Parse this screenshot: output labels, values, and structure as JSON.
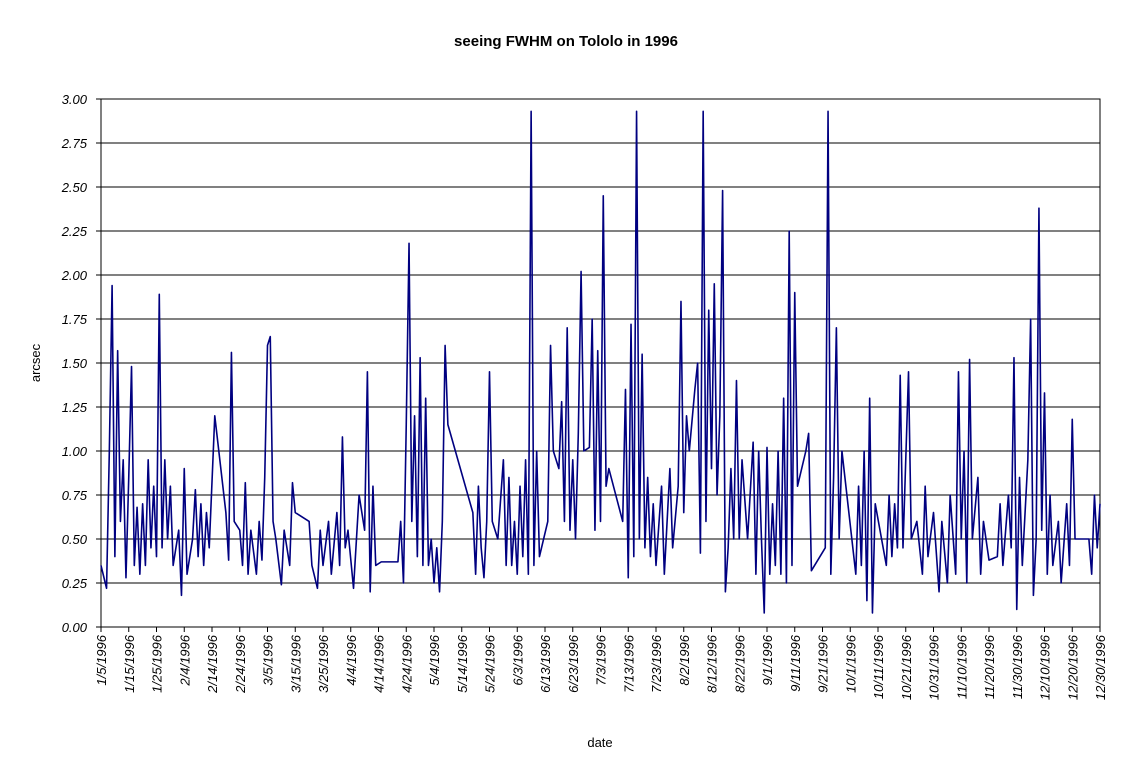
{
  "chart_data": {
    "type": "line",
    "title": "seeing FWHM on Tololo in 1996",
    "x_label": "date",
    "y_label": "arcsec",
    "color": "#000080",
    "grid": true,
    "xlim": [
      "1/5/1996",
      "12/30/1996"
    ],
    "xticks": [
      "1/5/1996",
      "1/15/1996",
      "1/25/1996",
      "2/4/1996",
      "2/14/1996",
      "2/24/1996",
      "3/5/1996",
      "3/15/1996",
      "3/25/1996",
      "4/4/1996",
      "4/14/1996",
      "4/24/1996",
      "5/4/1996",
      "5/14/1996",
      "5/24/1996",
      "6/3/1996",
      "6/13/1996",
      "6/23/1996",
      "7/3/1996",
      "7/13/1996",
      "7/23/1996",
      "8/2/1996",
      "8/12/1996",
      "8/22/1996",
      "9/1/1996",
      "9/11/1996",
      "9/21/1996",
      "10/1/1996",
      "10/11/1996",
      "10/21/1996",
      "10/31/1996",
      "11/10/1996",
      "11/20/1996",
      "11/30/1996",
      "12/10/1996",
      "12/20/1996",
      "12/30/1996"
    ],
    "ylim": [
      0,
      3
    ],
    "yticks": [
      {
        "value": 0,
        "label": "0.00"
      },
      {
        "value": 0.25,
        "label": "0.25"
      },
      {
        "value": 0.5,
        "label": "0.50"
      },
      {
        "value": 0.75,
        "label": "0.75"
      },
      {
        "value": 1,
        "label": "1.00"
      },
      {
        "value": 1.25,
        "label": "1.25"
      },
      {
        "value": 1.5,
        "label": "1.50"
      },
      {
        "value": 1.75,
        "label": "1.75"
      },
      {
        "value": 2,
        "label": "2.00"
      },
      {
        "value": 2.25,
        "label": "2.25"
      },
      {
        "value": 2.5,
        "label": "2.50"
      },
      {
        "value": 2.75,
        "label": "2.75"
      },
      {
        "value": 3,
        "label": "3.00"
      }
    ],
    "x": [
      "1/5/1996",
      "1/7/1996",
      "1/8/1996",
      "1/9/1996",
      "1/10/1996",
      "1/11/1996",
      "1/12/1996",
      "1/13/1996",
      "1/14/1996",
      "1/15/1996",
      "1/16/1996",
      "1/17/1996",
      "1/18/1996",
      "1/19/1996",
      "1/20/1996",
      "1/21/1996",
      "1/22/1996",
      "1/23/1996",
      "1/24/1996",
      "1/25/1996",
      "1/26/1996",
      "1/27/1996",
      "1/28/1996",
      "1/29/1996",
      "1/30/1996",
      "1/31/1996",
      "2/2/1996",
      "2/3/1996",
      "2/4/1996",
      "2/5/1996",
      "2/7/1996",
      "2/8/1996",
      "2/9/1996",
      "2/10/1996",
      "2/11/1996",
      "2/12/1996",
      "2/13/1996",
      "2/15/1996",
      "2/19/1996",
      "2/20/1996",
      "2/21/1996",
      "2/22/1996",
      "2/24/1996",
      "2/25/1996",
      "2/26/1996",
      "2/27/1996",
      "2/28/1996",
      "3/1/1996",
      "3/2/1996",
      "3/3/1996",
      "3/4/1996",
      "3/5/1996",
      "3/6/1996",
      "3/7/1996",
      "3/8/1996",
      "3/10/1996",
      "3/11/1996",
      "3/13/1996",
      "3/14/1996",
      "3/15/1996",
      "3/20/1996",
      "3/21/1996",
      "3/23/1996",
      "3/24/1996",
      "3/25/1996",
      "3/27/1996",
      "3/28/1996",
      "3/30/1996",
      "3/31/1996",
      "4/1/1996",
      "4/2/1996",
      "4/3/1996",
      "4/5/1996",
      "4/7/1996",
      "4/9/1996",
      "4/10/1996",
      "4/11/1996",
      "4/12/1996",
      "4/13/1996",
      "4/15/1996",
      "4/21/1996",
      "4/22/1996",
      "4/23/1996",
      "4/24/1996",
      "4/25/1996",
      "4/26/1996",
      "4/27/1996",
      "4/28/1996",
      "4/29/1996",
      "4/30/1996",
      "5/1/1996",
      "5/2/1996",
      "5/3/1996",
      "5/4/1996",
      "5/5/1996",
      "5/6/1996",
      "5/7/1996",
      "5/8/1996",
      "5/9/1996",
      "5/18/1996",
      "5/19/1996",
      "5/20/1996",
      "5/21/1996",
      "5/22/1996",
      "5/23/1996",
      "5/24/1996",
      "5/25/1996",
      "5/27/1996",
      "5/29/1996",
      "5/30/1996",
      "5/31/1996",
      "6/1/1996",
      "6/2/1996",
      "6/3/1996",
      "6/4/1996",
      "6/5/1996",
      "6/6/1996",
      "6/7/1996",
      "6/8/1996",
      "6/9/1996",
      "6/10/1996",
      "6/11/1996",
      "6/14/1996",
      "6/15/1996",
      "6/16/1996",
      "6/18/1996",
      "6/19/1996",
      "6/20/1996",
      "6/21/1996",
      "6/22/1996",
      "6/23/1996",
      "6/24/1996",
      "6/25/1996",
      "6/26/1996",
      "6/27/1996",
      "6/29/1996",
      "6/30/1996",
      "7/1/1996",
      "7/2/1996",
      "7/3/1996",
      "7/4/1996",
      "7/5/1996",
      "7/6/1996",
      "7/11/1996",
      "7/12/1996",
      "7/13/1996",
      "7/14/1996",
      "7/15/1996",
      "7/16/1996",
      "7/17/1996",
      "7/18/1996",
      "7/19/1996",
      "7/20/1996",
      "7/21/1996",
      "7/22/1996",
      "7/23/1996",
      "7/25/1996",
      "7/26/1996",
      "7/28/1996",
      "7/29/1996",
      "7/31/1996",
      "8/1/1996",
      "8/2/1996",
      "8/3/1996",
      "8/4/1996",
      "8/6/1996",
      "8/7/1996",
      "8/8/1996",
      "8/9/1996",
      "8/10/1996",
      "8/11/1996",
      "8/12/1996",
      "8/13/1996",
      "8/14/1996",
      "8/15/1996",
      "8/16/1996",
      "8/17/1996",
      "8/18/1996",
      "8/19/1996",
      "8/20/1996",
      "8/21/1996",
      "8/22/1996",
      "8/23/1996",
      "8/25/1996",
      "8/27/1996",
      "8/28/1996",
      "8/29/1996",
      "8/30/1996",
      "8/31/1996",
      "9/1/1996",
      "9/2/1996",
      "9/3/1996",
      "9/4/1996",
      "9/5/1996",
      "9/6/1996",
      "9/7/1996",
      "9/8/1996",
      "9/9/1996",
      "9/10/1996",
      "9/11/1996",
      "9/12/1996",
      "9/15/1996",
      "9/16/1996",
      "9/17/1996",
      "9/22/1996",
      "9/23/1996",
      "9/24/1996",
      "9/25/1996",
      "9/26/1996",
      "9/27/1996",
      "9/28/1996",
      "10/3/1996",
      "10/4/1996",
      "10/5/1996",
      "10/6/1996",
      "10/7/1996",
      "10/8/1996",
      "10/9/1996",
      "10/10/1996",
      "10/14/1996",
      "10/15/1996",
      "10/16/1996",
      "10/17/1996",
      "10/18/1996",
      "10/19/1996",
      "10/20/1996",
      "10/22/1996",
      "10/23/1996",
      "10/25/1996",
      "10/27/1996",
      "10/28/1996",
      "10/29/1996",
      "10/31/1996",
      "11/2/1996",
      "11/3/1996",
      "11/5/1996",
      "11/6/1996",
      "11/8/1996",
      "11/9/1996",
      "11/10/1996",
      "11/11/1996",
      "11/12/1996",
      "11/13/1996",
      "11/14/1996",
      "11/16/1996",
      "11/17/1996",
      "11/18/1996",
      "11/20/1996",
      "11/23/1996",
      "11/24/1996",
      "11/25/1996",
      "11/27/1996",
      "11/28/1996",
      "11/29/1996",
      "11/30/1996",
      "12/1/1996",
      "12/2/1996",
      "12/4/1996",
      "12/5/1996",
      "12/6/1996",
      "12/7/1996",
      "12/8/1996",
      "12/9/1996",
      "12/10/1996",
      "12/11/1996",
      "12/12/1996",
      "12/13/1996",
      "12/15/1996",
      "12/16/1996",
      "12/18/1996",
      "12/19/1996",
      "12/20/1996",
      "12/21/1996",
      "12/26/1996",
      "12/27/1996",
      "12/28/1996",
      "12/29/1996",
      "12/30/1996"
    ],
    "values": [
      0.35,
      0.22,
      1.0,
      1.94,
      0.4,
      1.57,
      0.6,
      0.95,
      0.28,
      0.85,
      1.48,
      0.35,
      0.68,
      0.3,
      0.7,
      0.35,
      0.95,
      0.45,
      0.8,
      0.4,
      1.89,
      0.45,
      0.95,
      0.5,
      0.8,
      0.35,
      0.55,
      0.18,
      0.9,
      0.3,
      0.5,
      0.78,
      0.4,
      0.7,
      0.35,
      0.65,
      0.45,
      1.2,
      0.65,
      0.38,
      1.56,
      0.6,
      0.55,
      0.35,
      0.82,
      0.3,
      0.55,
      0.3,
      0.6,
      0.38,
      0.85,
      1.6,
      1.65,
      0.6,
      0.5,
      0.24,
      0.55,
      0.35,
      0.82,
      0.65,
      0.6,
      0.35,
      0.22,
      0.55,
      0.35,
      0.6,
      0.3,
      0.65,
      0.35,
      1.08,
      0.45,
      0.55,
      0.22,
      0.75,
      0.55,
      1.45,
      0.2,
      0.8,
      0.35,
      0.37,
      0.37,
      0.6,
      0.25,
      1.15,
      2.18,
      0.6,
      1.2,
      0.4,
      1.53,
      0.35,
      1.3,
      0.35,
      0.5,
      0.25,
      0.45,
      0.2,
      0.6,
      1.6,
      1.15,
      0.65,
      0.3,
      0.8,
      0.45,
      0.28,
      0.6,
      1.45,
      0.6,
      0.5,
      0.95,
      0.35,
      0.85,
      0.35,
      0.6,
      0.3,
      0.8,
      0.4,
      0.95,
      0.3,
      2.93,
      0.35,
      1.0,
      0.4,
      0.6,
      1.6,
      1.0,
      0.9,
      1.28,
      0.6,
      1.7,
      0.55,
      0.95,
      0.5,
      1.1,
      2.02,
      1.0,
      1.02,
      1.75,
      0.55,
      1.57,
      0.6,
      2.45,
      0.8,
      0.9,
      0.6,
      1.35,
      0.28,
      1.72,
      0.4,
      2.93,
      0.5,
      1.55,
      0.45,
      0.85,
      0.4,
      0.7,
      0.35,
      0.8,
      0.3,
      0.9,
      0.45,
      0.8,
      1.85,
      0.65,
      1.2,
      1.0,
      1.35,
      1.5,
      0.42,
      2.93,
      0.6,
      1.8,
      0.9,
      1.95,
      0.75,
      1.2,
      2.48,
      0.2,
      0.45,
      0.9,
      0.5,
      1.4,
      0.5,
      0.95,
      0.5,
      1.05,
      0.3,
      1.0,
      0.5,
      0.08,
      1.02,
      0.3,
      0.7,
      0.35,
      1.0,
      0.3,
      1.3,
      0.25,
      2.25,
      0.35,
      1.9,
      0.8,
      1.0,
      1.1,
      0.32,
      0.45,
      2.93,
      0.3,
      0.85,
      1.7,
      0.5,
      1.0,
      0.3,
      0.8,
      0.35,
      1.0,
      0.15,
      1.3,
      0.08,
      0.7,
      0.35,
      0.75,
      0.4,
      0.7,
      0.45,
      1.43,
      0.45,
      1.45,
      0.5,
      0.6,
      0.3,
      0.8,
      0.4,
      0.65,
      0.2,
      0.6,
      0.25,
      0.75,
      0.3,
      1.45,
      0.5,
      1.0,
      0.25,
      1.52,
      0.5,
      0.85,
      0.3,
      0.6,
      0.38,
      0.4,
      0.7,
      0.35,
      0.75,
      0.45,
      1.53,
      0.1,
      0.85,
      0.35,
      0.95,
      1.75,
      0.18,
      0.5,
      2.38,
      0.55,
      1.33,
      0.3,
      0.75,
      0.35,
      0.6,
      0.25,
      0.7,
      0.35,
      1.18,
      0.5,
      0.5,
      0.3,
      0.75,
      0.45,
      0.7
    ]
  }
}
